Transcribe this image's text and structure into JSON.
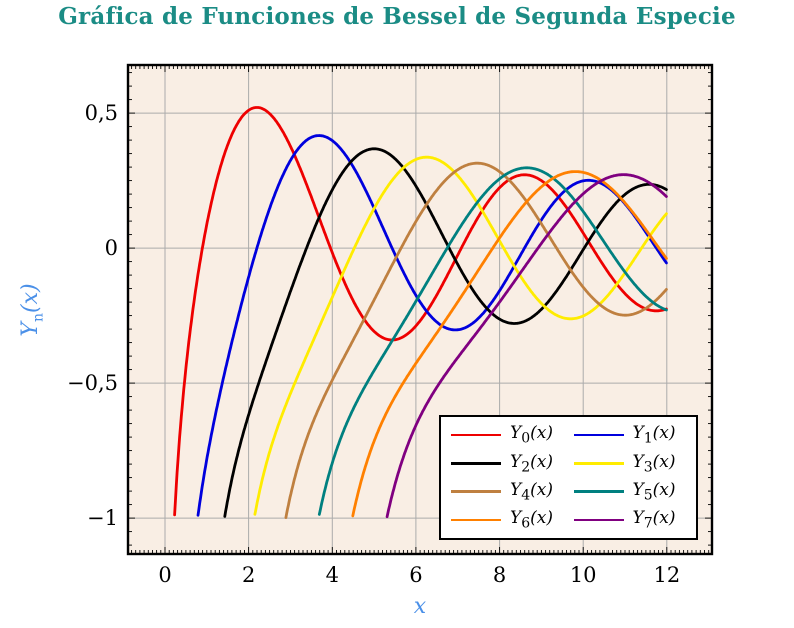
{
  "page": {
    "title": "Gráfica de Funciones de Bessel de Segunda Especie",
    "title_color": "#1b8c85",
    "background": "#ffffff"
  },
  "axes": {
    "xlabel": "x",
    "ylabel_base": "Y",
    "ylabel_sub": "n",
    "ylabel_rest": "(x)",
    "label_color": "#4b90e8",
    "x_tick_labels": [
      "0",
      "2",
      "4",
      "6",
      "8",
      "10",
      "12"
    ],
    "x_tick_values": [
      0,
      2,
      4,
      6,
      8,
      10,
      12
    ],
    "y_tick_labels": [
      "0,5",
      "0",
      "−0,5",
      "−1"
    ],
    "y_tick_values": [
      0.5,
      0,
      -0.5,
      -1
    ]
  },
  "chart_data": {
    "type": "line",
    "title": "Gráfica de Funciones de Bessel de Segunda Especie",
    "xlabel": "x",
    "ylabel": "Y_n(x)",
    "xlim": [
      -0.885,
      13.08
    ],
    "ylim": [
      -1.133,
      0.678
    ],
    "x_major_step": 2,
    "x_minor_step": 0.1,
    "y_major_step": 0.5,
    "y_minor_step": 0.05,
    "grid": "major",
    "grid_color": "#ababab",
    "plot_background": "#f9eee4",
    "border_color": "#000000",
    "legend_position": "inside lower right",
    "sampling": {
      "function": "bessel_y_second_kind",
      "x_start": 0.03,
      "x_end": 12.0,
      "step": 0.02,
      "clip_y_min": -1.0
    },
    "series": [
      {
        "name": "Y_0(x)",
        "sub": "0",
        "order": 0,
        "color": "#ee0000",
        "points": {
          "x": [
            1,
            2,
            3,
            4,
            5,
            6,
            7,
            8,
            9,
            10,
            11,
            12
          ],
          "y": [
            0.088,
            0.51,
            0.377,
            -0.017,
            -0.308,
            -0.288,
            -0.026,
            0.224,
            0.25,
            0.056,
            -0.169,
            -0.225
          ]
        }
      },
      {
        "name": "Y_1(x)",
        "sub": "1",
        "order": 1,
        "color": "#0000dd",
        "points": {
          "x": [
            1,
            2,
            3,
            4,
            5,
            6,
            7,
            8,
            9,
            10,
            11,
            12
          ],
          "y": [
            -0.781,
            -0.107,
            0.325,
            0.398,
            0.148,
            -0.175,
            -0.303,
            -0.158,
            0.104,
            0.249,
            0.164,
            -0.057
          ]
        }
      },
      {
        "name": "Y_2(x)",
        "sub": "2",
        "order": 2,
        "color": "#000000",
        "points": {
          "x": [
            2,
            3,
            4,
            5,
            6,
            7,
            8,
            9,
            10,
            11,
            12
          ],
          "y": [
            -0.617,
            -0.16,
            0.216,
            0.368,
            0.23,
            -0.061,
            -0.263,
            -0.227,
            -0.006,
            0.199,
            0.216
          ]
        }
      },
      {
        "name": "Y_3(x)",
        "sub": "3",
        "order": 3,
        "color": "#ffec00",
        "points": {
          "x": [
            3,
            4,
            5,
            6,
            7,
            8,
            9,
            10,
            11,
            12
          ],
          "y": [
            -0.539,
            -0.182,
            0.146,
            0.328,
            0.268,
            0.027,
            -0.205,
            -0.251,
            -0.092,
            0.129
          ]
        }
      },
      {
        "name": "Y_4(x)",
        "sub": "4",
        "order": 4,
        "color": "#bf8040",
        "points": {
          "x": [
            3,
            4,
            5,
            6,
            7,
            8,
            9,
            10,
            11,
            12
          ],
          "y": [
            -0.917,
            -0.489,
            -0.192,
            0.098,
            0.29,
            0.283,
            0.09,
            -0.145,
            -0.249,
            -0.151
          ]
        }
      },
      {
        "name": "Y_5(x)",
        "sub": "5",
        "order": 5,
        "color": "#008080",
        "points": {
          "x": [
            4,
            5,
            6,
            7,
            8,
            9,
            10,
            11,
            12
          ],
          "y": [
            -0.796,
            -0.454,
            -0.197,
            0.064,
            0.256,
            0.285,
            0.136,
            -0.089,
            -0.23
          ]
        }
      },
      {
        "name": "Y_6(x)",
        "sub": "6",
        "order": 6,
        "color": "#ff8000",
        "points": {
          "x": [
            5,
            6,
            7,
            8,
            9,
            10,
            11,
            12
          ],
          "y": [
            -0.715,
            -0.427,
            -0.199,
            0.037,
            0.227,
            0.28,
            0.167,
            -0.04
          ]
        }
      },
      {
        "name": "Y_7(x)",
        "sub": "7",
        "order": 7,
        "color": "#800080",
        "points": {
          "x": [
            6,
            7,
            8,
            9,
            10,
            11,
            12
          ],
          "y": [
            -0.657,
            -0.405,
            -0.2,
            0.017,
            0.201,
            0.272,
            0.19
          ]
        }
      }
    ]
  }
}
